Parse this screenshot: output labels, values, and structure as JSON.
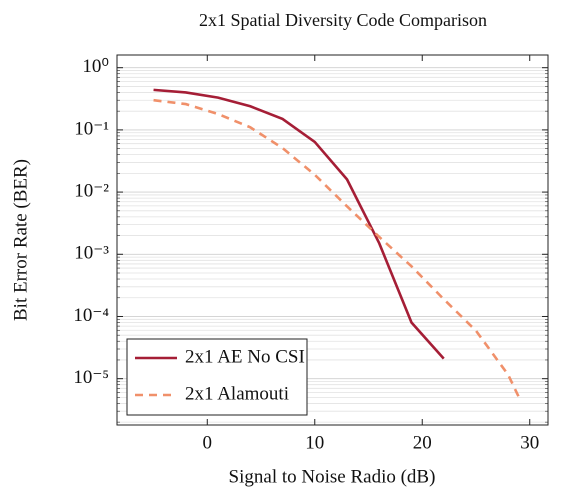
{
  "chart_data": {
    "type": "line",
    "title": "2x1 Spatial Diversity Code Comparison",
    "xlabel": "Signal to Noise Radio (dB)",
    "ylabel": "Bit Error Rate (BER)",
    "yscale": "log",
    "grid": true,
    "minor_grid": true,
    "legend": "lower left",
    "xlim": [
      -8.4,
      31.7
    ],
    "xticks": [
      0,
      10,
      20,
      30
    ],
    "ylim": [
      1.6,
      1.8e-06
    ],
    "yticks": [
      {
        "value": 1,
        "label": "10⁰"
      },
      {
        "value": 0.1,
        "label": "10⁻¹"
      },
      {
        "value": 0.01,
        "label": "10⁻²"
      },
      {
        "value": 0.001,
        "label": "10⁻³"
      },
      {
        "value": 0.0001,
        "label": "10⁻⁴"
      },
      {
        "value": 1e-05,
        "label": "10⁻⁵"
      }
    ],
    "series": [
      {
        "name": "2x1 AE No CSI",
        "color": "#a51e36",
        "dash": "solid",
        "x": [
          -5,
          -2,
          1,
          4,
          7,
          10,
          13,
          16,
          19,
          22
        ],
        "values": [
          0.44,
          0.4,
          0.33,
          0.24,
          0.15,
          0.064,
          0.016,
          0.0015,
          8e-05,
          2.1e-05
        ]
      },
      {
        "name": "2x1 Alamouti",
        "color": "#f0906a",
        "dash": "dashed",
        "x": [
          -5,
          -2,
          1,
          4,
          7,
          10,
          13,
          16,
          19,
          22,
          25,
          28,
          29
        ],
        "values": [
          0.3,
          0.26,
          0.18,
          0.11,
          0.051,
          0.019,
          0.0059,
          0.0019,
          0.00064,
          0.00019,
          5.9e-05,
          1.15e-05,
          5e-06
        ]
      }
    ]
  }
}
